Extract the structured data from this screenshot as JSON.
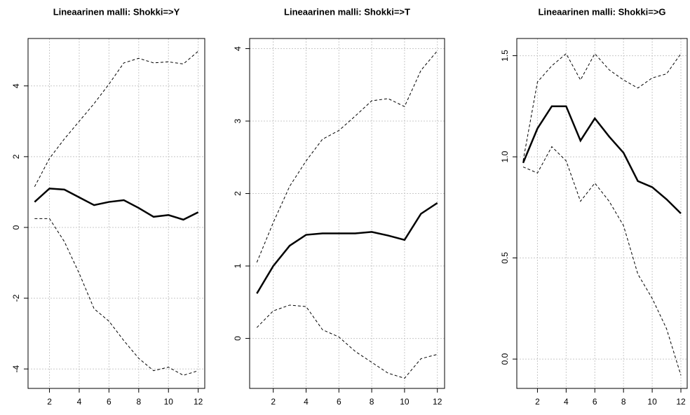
{
  "chart_data": [
    {
      "type": "line",
      "title": "Lineaarinen malli: Shokki=>Y",
      "x": [
        1,
        2,
        3,
        4,
        5,
        6,
        7,
        8,
        9,
        10,
        11,
        12
      ],
      "series": [
        {
          "color": "#000000",
          "style": "solid",
          "values": [
            0.72,
            1.1,
            1.07,
            0.85,
            0.63,
            0.72,
            0.77,
            0.55,
            0.3,
            0.35,
            0.22,
            0.43
          ]
        },
        {
          "color": "#000000",
          "style": "dashed",
          "values": [
            1.15,
            1.95,
            2.5,
            3.0,
            3.5,
            4.05,
            4.65,
            4.78,
            4.65,
            4.68,
            4.62,
            4.98
          ]
        },
        {
          "color": "#000000",
          "style": "dashed",
          "values": [
            0.25,
            0.25,
            -0.4,
            -1.3,
            -2.3,
            -2.65,
            -3.2,
            -3.7,
            -4.05,
            -3.95,
            -4.18,
            -4.05
          ]
        }
      ],
      "xlim": [
        0.56,
        12.44
      ],
      "xticks": [
        2,
        4,
        6,
        8,
        10,
        12
      ],
      "ylim": [
        -4.55,
        5.34
      ],
      "yticks": [
        -4,
        -2,
        0,
        2,
        4
      ],
      "grid": true
    },
    {
      "type": "line",
      "title": "Lineaarinen malli: Shokki=>T",
      "x": [
        1,
        2,
        3,
        4,
        5,
        6,
        7,
        8,
        9,
        10,
        11,
        12
      ],
      "series": [
        {
          "color": "#000000",
          "style": "solid",
          "values": [
            0.62,
            1.0,
            1.28,
            1.43,
            1.45,
            1.45,
            1.45,
            1.47,
            1.42,
            1.36,
            1.72,
            1.87
          ]
        },
        {
          "color": "#000000",
          "style": "dashed",
          "values": [
            1.05,
            1.6,
            2.1,
            2.45,
            2.75,
            2.87,
            3.07,
            3.28,
            3.31,
            3.2,
            3.7,
            3.97
          ]
        },
        {
          "color": "#000000",
          "style": "dashed",
          "values": [
            0.15,
            0.38,
            0.46,
            0.44,
            0.12,
            0.02,
            -0.18,
            -0.33,
            -0.48,
            -0.55,
            -0.28,
            -0.22
          ]
        }
      ],
      "xlim": [
        0.56,
        12.44
      ],
      "xticks": [
        2,
        4,
        6,
        8,
        10,
        12
      ],
      "ylim": [
        -0.69,
        4.14
      ],
      "yticks": [
        0,
        1,
        2,
        3,
        4
      ],
      "grid": true
    },
    {
      "type": "line",
      "title": "Lineaarinen malli: Shokki=>G",
      "x": [
        1,
        2,
        3,
        4,
        5,
        6,
        7,
        8,
        9,
        10,
        11,
        12
      ],
      "series": [
        {
          "color": "#000000",
          "style": "solid",
          "values": [
            0.97,
            1.14,
            1.25,
            1.25,
            1.08,
            1.19,
            1.1,
            1.02,
            0.88,
            0.85,
            0.79,
            0.72
          ]
        },
        {
          "color": "#000000",
          "style": "dashed",
          "values": [
            0.98,
            1.37,
            1.45,
            1.51,
            1.38,
            1.51,
            1.43,
            1.38,
            1.34,
            1.39,
            1.41,
            1.51
          ]
        },
        {
          "color": "#000000",
          "style": "dashed",
          "values": [
            0.95,
            0.92,
            1.05,
            0.98,
            0.78,
            0.87,
            0.78,
            0.66,
            0.42,
            0.3,
            0.15,
            -0.08
          ]
        }
      ],
      "xlim": [
        0.56,
        12.44
      ],
      "xticks": [
        2,
        4,
        6,
        8,
        10,
        12
      ],
      "ylim": [
        -0.145,
        1.585
      ],
      "yticks": [
        {
          "value": 0,
          "label": "0.0"
        },
        0.5,
        {
          "value": 1,
          "label": "1.0"
        },
        1.5
      ],
      "grid": true
    }
  ]
}
